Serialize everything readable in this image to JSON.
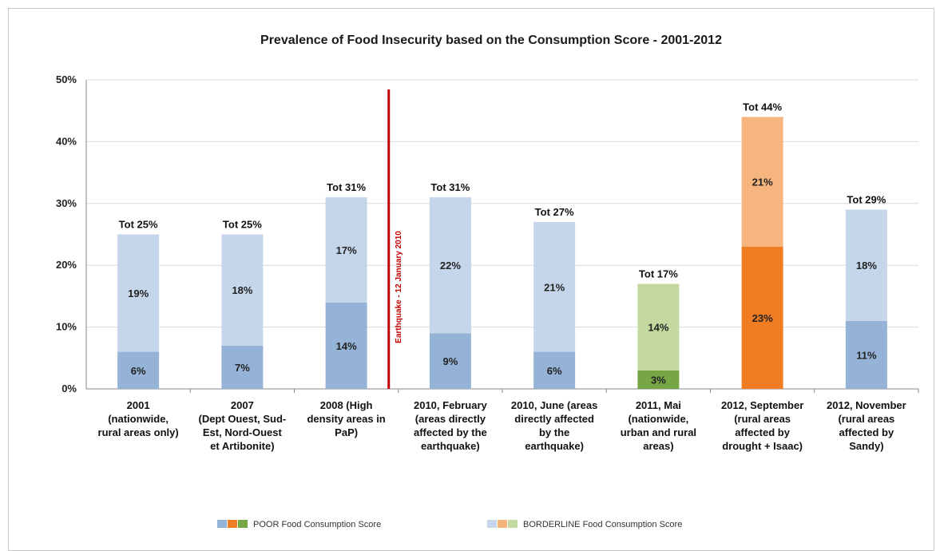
{
  "chart_data": {
    "type": "bar",
    "stacked": true,
    "title": "Prevalence of Food Insecurity based on the Consumption Score - 2001-2012",
    "ylim": [
      0,
      50
    ],
    "yticks": [
      "0%",
      "10%",
      "20%",
      "30%",
      "40%",
      "50%"
    ],
    "grid": "horizontal",
    "categories": [
      [
        "2001",
        "(nationwide,",
        "rural areas only)"
      ],
      [
        "2007",
        "(Dept Ouest, Sud-",
        "Est, Nord-Ouest",
        "et Artibonite)"
      ],
      [
        "2008 (High",
        "density areas in",
        "PaP)"
      ],
      [
        "2010, February",
        "(areas directly",
        "affected by the",
        "earthquake)"
      ],
      [
        "2010, June (areas",
        "directly affected",
        "by the",
        "earthquake)"
      ],
      [
        "2011, Mai",
        "(nationwide,",
        "urban and rural",
        "areas)"
      ],
      [
        "2012, September",
        "(rural areas",
        "affected by",
        "drought + Isaac)"
      ],
      [
        "2012, November",
        "(rural areas",
        "affected by",
        "Sandy)"
      ]
    ],
    "poor": [
      6,
      7,
      14,
      9,
      6,
      3,
      23,
      11
    ],
    "borderline": [
      19,
      18,
      17,
      22,
      21,
      14,
      21,
      18
    ],
    "poor_labels": [
      "6%",
      "7%",
      "14%",
      "9%",
      "6%",
      "3%",
      "23%",
      "11%"
    ],
    "borderline_labels": [
      "19%",
      "18%",
      "17%",
      "22%",
      "21%",
      "14%",
      "21%",
      "18%"
    ],
    "totals": [
      25,
      25,
      31,
      31,
      27,
      17,
      44,
      29
    ],
    "total_labels": [
      "Tot 25%",
      "Tot 25%",
      "Tot 31%",
      "Tot 31%",
      "Tot 27%",
      "Tot 17%",
      "Tot 44%",
      "Tot 29%"
    ],
    "colors": {
      "poor": [
        "#95b3d7",
        "#95b3d7",
        "#95b3d7",
        "#95b3d7",
        "#95b3d7",
        "#77a644",
        "#f07d24",
        "#95b3d7"
      ],
      "borderline": [
        "#c5d6ea",
        "#c5d6ea",
        "#c5d6ea",
        "#c5d6ea",
        "#c5d6ea",
        "#c4d9a0",
        "#f6b57e",
        "#c5d6ea"
      ]
    },
    "annotation": {
      "text": "Earthquake - 12 January 2010",
      "between_categories": [
        2,
        3
      ],
      "color": "#c00000"
    },
    "legend": {
      "placement": "bottom",
      "items": [
        {
          "label": "POOR Food Consumption Score",
          "swatches": [
            "#95b3d7",
            "#f07d24",
            "#77a644"
          ]
        },
        {
          "label": "BORDERLINE Food Consumption Score",
          "swatches": [
            "#c5d6ea",
            "#f6b57e",
            "#c4d9a0"
          ]
        }
      ]
    }
  }
}
